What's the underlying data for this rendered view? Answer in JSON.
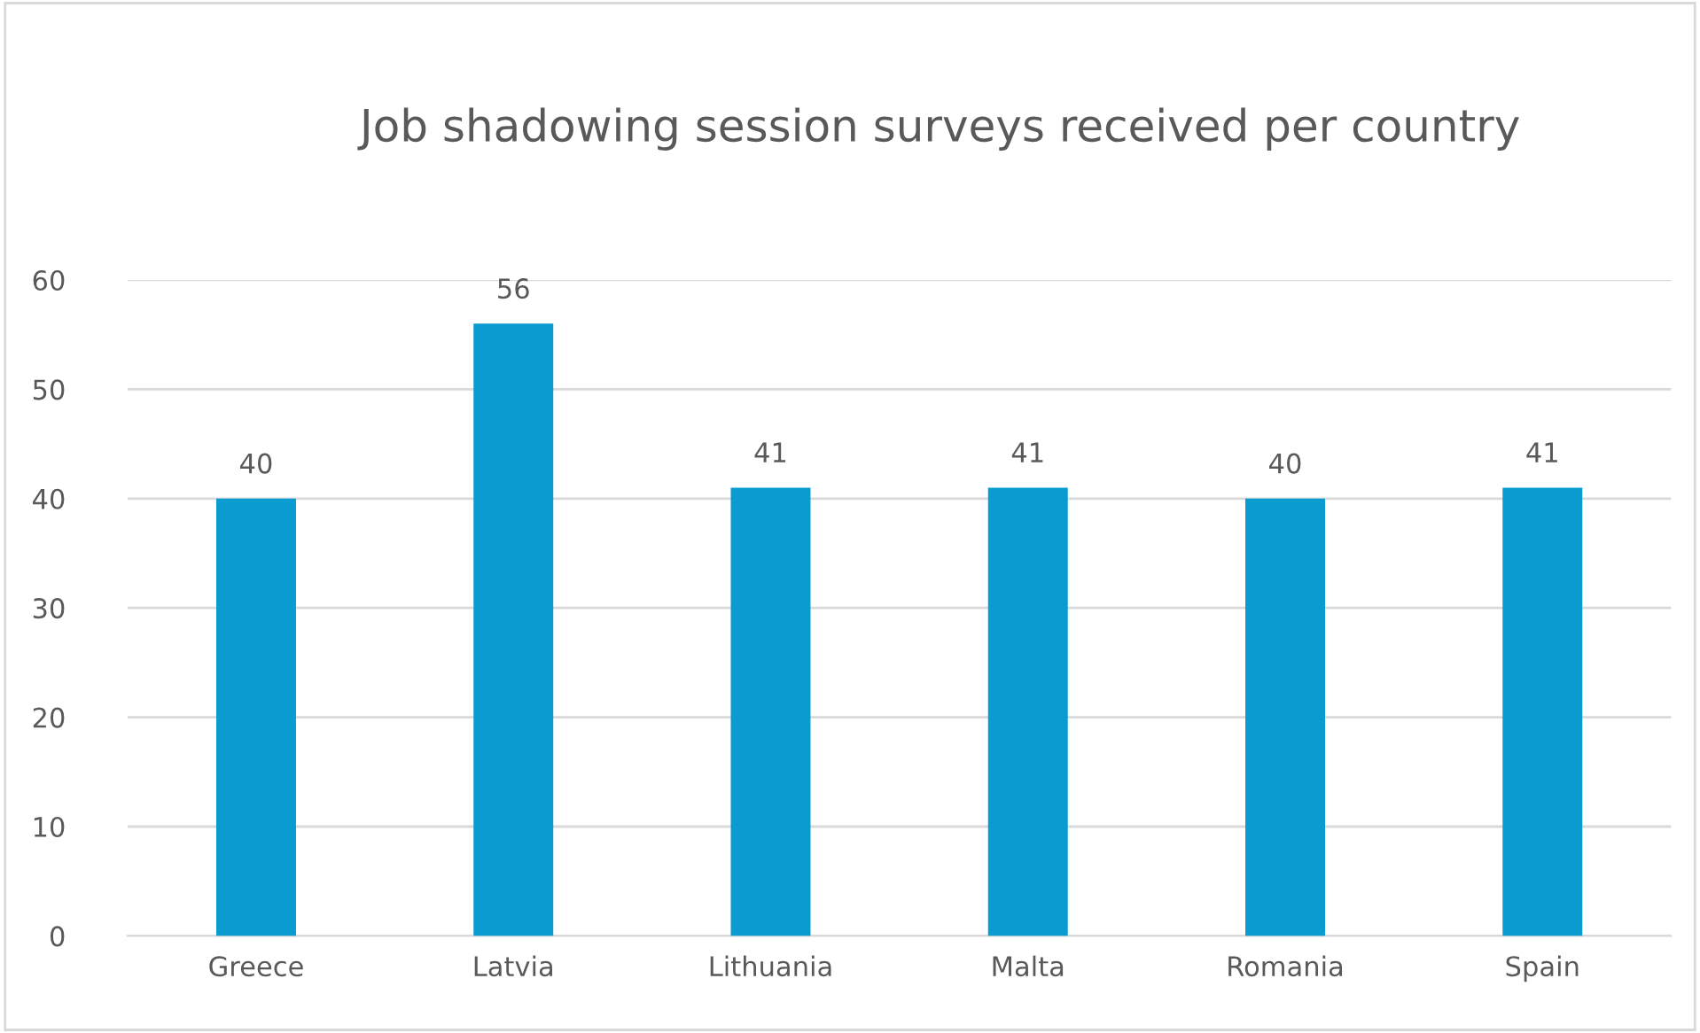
{
  "chart_data": {
    "type": "bar",
    "title": "Job shadowing session surveys received per country",
    "categories": [
      "Greece",
      "Latvia",
      "Lithuania",
      "Malta",
      "Romania",
      "Spain"
    ],
    "values": [
      40,
      56,
      41,
      41,
      40,
      41
    ],
    "color": "#0a9cd0",
    "ylim": [
      0,
      60
    ],
    "yticks": [
      0,
      10,
      20,
      30,
      40,
      50,
      60
    ],
    "grid": "y",
    "data_labels": true
  }
}
